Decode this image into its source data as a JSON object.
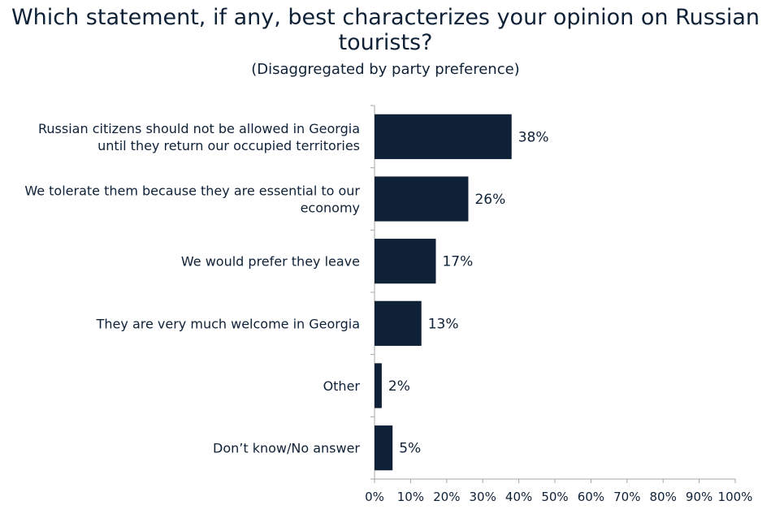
{
  "header": {
    "title_line1": "Which statement, if any, best characterizes your opinion on Russian",
    "title_line2": "tourists?",
    "subtitle": "(Disaggregated by party preference)"
  },
  "colors": {
    "bar": "#0f2137",
    "text": "#0f2137",
    "axis": "#a6a6a6"
  },
  "chart_data": {
    "type": "bar",
    "orientation": "horizontal",
    "title": "Which statement, if any, best characterizes your opinion on Russian tourists?",
    "subtitle": "(Disaggregated by party preference)",
    "categories": [
      [
        "Russian citizens should not be allowed in Georgia",
        "until they return our occupied territories"
      ],
      [
        "We tolerate them because they are essential to our",
        "economy"
      ],
      [
        "We would prefer they leave"
      ],
      [
        "They are very much welcome in Georgia"
      ],
      [
        "Other"
      ],
      [
        "Don’t know/No answer"
      ]
    ],
    "values": [
      38,
      26,
      17,
      13,
      2,
      5
    ],
    "value_labels": [
      "38%",
      "26%",
      "17%",
      "13%",
      "2%",
      "5%"
    ],
    "xlim": [
      0,
      100
    ],
    "x_ticks": [
      "0%",
      "10%",
      "20%",
      "30%",
      "40%",
      "50%",
      "60%",
      "70%",
      "80%",
      "90%",
      "100%"
    ],
    "grid": false,
    "legend": "none"
  }
}
